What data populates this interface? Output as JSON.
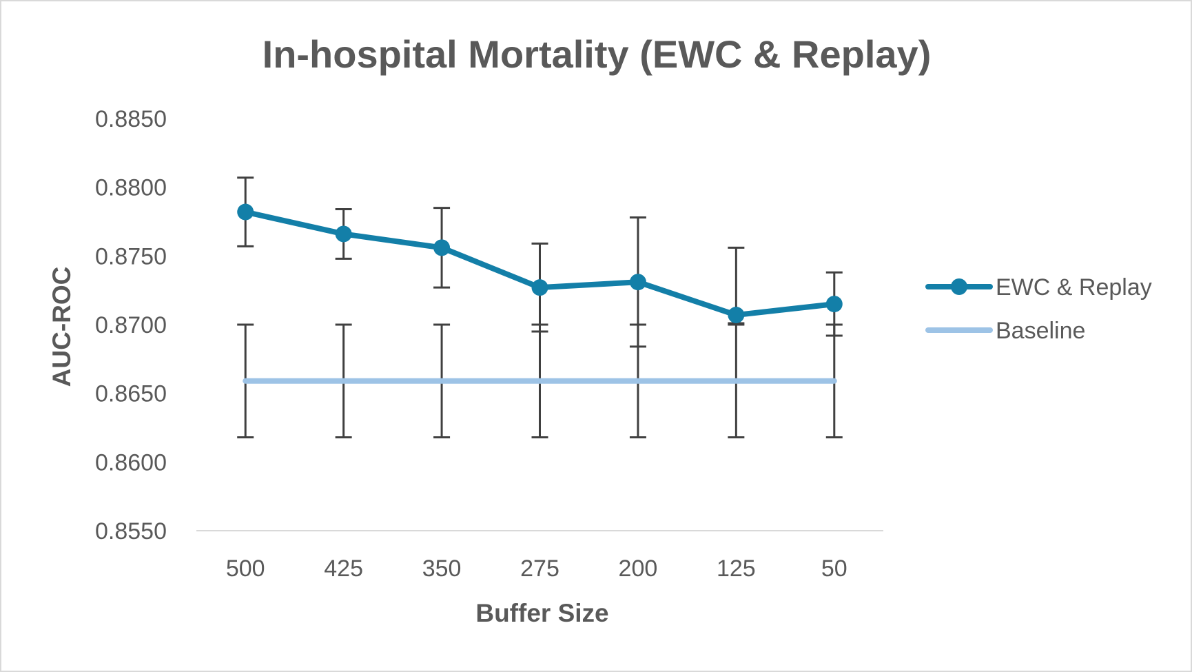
{
  "chart_data": {
    "type": "line",
    "title": "In-hospital Mortality (EWC & Replay)",
    "xlabel": "Buffer Size",
    "ylabel": "AUC-ROC",
    "categories": [
      "500",
      "425",
      "350",
      "275",
      "200",
      "125",
      "50"
    ],
    "ylim": [
      0.855,
      0.885
    ],
    "yticks": [
      0.855,
      0.86,
      0.865,
      0.87,
      0.875,
      0.88,
      0.885
    ],
    "ytick_labels": [
      "0.8550",
      "0.8600",
      "0.8650",
      "0.8700",
      "0.8750",
      "0.8800",
      "0.8850"
    ],
    "grid": false,
    "legend_position": "right",
    "series": [
      {
        "name": "EWC & Replay",
        "color": "#137fa8",
        "marker": "circle",
        "values": [
          0.8782,
          0.8766,
          0.8756,
          0.8727,
          0.8731,
          0.8707,
          0.8715
        ],
        "err_upper": [
          0.8807,
          0.8784,
          0.8785,
          0.8759,
          0.8778,
          0.8756,
          0.8738
        ],
        "err_lower": [
          0.8757,
          0.8748,
          0.8727,
          0.8695,
          0.8684,
          0.8701,
          0.8692
        ]
      },
      {
        "name": "Baseline",
        "color": "#9dc3e6",
        "marker": "none",
        "values": [
          0.8659,
          0.8659,
          0.8659,
          0.8659,
          0.8659,
          0.8659,
          0.8659
        ],
        "err_upper": [
          0.87,
          0.87,
          0.87,
          0.87,
          0.87,
          0.87,
          0.87
        ],
        "err_lower": [
          0.8618,
          0.8618,
          0.8618,
          0.8618,
          0.8618,
          0.8618,
          0.8618
        ]
      }
    ],
    "colors": {
      "error_bar": "#404040",
      "axis_line": "#d9d9d9",
      "text": "#595959"
    }
  }
}
